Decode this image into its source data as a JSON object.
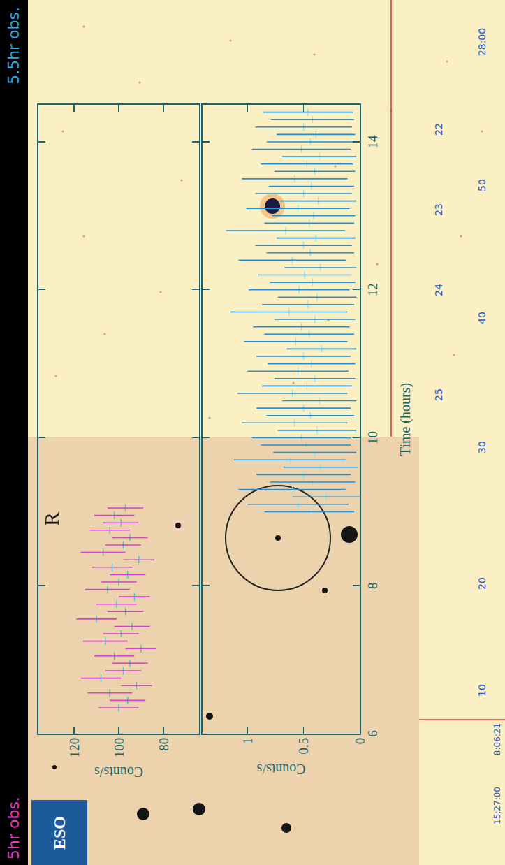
{
  "chart_data": [
    {
      "type": "scatter",
      "annotation": "R",
      "ylabel": "Counts/s",
      "xlim": [
        6,
        14.5
      ],
      "xticks": [
        6,
        8,
        10,
        12,
        14
      ],
      "ylim": [
        64,
        136
      ],
      "yticks": [
        80,
        100,
        120
      ],
      "tick_labels": "y",
      "series": [
        {
          "color": "#d23fd2",
          "x": [
            6.35,
            6.45,
            6.55,
            6.65,
            6.75,
            6.85,
            6.95,
            7.05,
            7.15,
            7.25,
            7.35,
            7.45,
            7.55,
            7.65,
            7.75,
            7.85,
            7.95,
            8.05,
            8.15,
            8.25,
            8.35,
            8.45,
            8.55,
            8.65,
            8.75,
            8.85,
            8.95,
            9.05
          ],
          "values": [
            100,
            96,
            104,
            92,
            108,
            98,
            95,
            102,
            90,
            106,
            99,
            94,
            110,
            97,
            101,
            93,
            105,
            100,
            96,
            103,
            91,
            107,
            98,
            95,
            104,
            99,
            102,
            97
          ],
          "errors": [
            9,
            8,
            10,
            7,
            9,
            8,
            8,
            9,
            7,
            10,
            8,
            8,
            9,
            8,
            9,
            7,
            10,
            8,
            8,
            9,
            7,
            10,
            8,
            8,
            9,
            8,
            9,
            8
          ]
        }
      ]
    },
    {
      "type": "scatter",
      "xlabel": "Time (hours)",
      "ylabel": "Counts/s",
      "xlim": [
        6,
        14.5
      ],
      "xticks": [
        6,
        8,
        10,
        12,
        14
      ],
      "ylim": [
        0,
        1.4
      ],
      "yticks": [
        0,
        0.5,
        1
      ],
      "series": [
        {
          "color": "#1e8fd6",
          "x": [
            9.0,
            9.1,
            9.2,
            9.3,
            9.4,
            9.5,
            9.6,
            9.7,
            9.8,
            9.9,
            10.0,
            10.1,
            10.2,
            10.3,
            10.4,
            10.5,
            10.6,
            10.7,
            10.8,
            10.9,
            11.0,
            11.1,
            11.2,
            11.3,
            11.4,
            11.5,
            11.6,
            11.7,
            11.8,
            11.9,
            12.0,
            12.1,
            12.2,
            12.3,
            12.4,
            12.5,
            12.6,
            12.7,
            12.8,
            12.9,
            13.0,
            13.1,
            13.2,
            13.3,
            13.4,
            13.5,
            13.6,
            13.7,
            13.8,
            13.9,
            14.0,
            14.1,
            14.2,
            14.3,
            14.4
          ],
          "values": [
            0.45,
            0.55,
            0.3,
            0.6,
            0.42,
            0.5,
            0.35,
            0.62,
            0.4,
            0.48,
            0.52,
            0.38,
            0.58,
            0.44,
            0.5,
            0.36,
            0.6,
            0.47,
            0.4,
            0.55,
            0.43,
            0.5,
            0.34,
            0.57,
            0.45,
            0.52,
            0.4,
            0.63,
            0.46,
            0.38,
            0.54,
            0.42,
            0.49,
            0.35,
            0.6,
            0.44,
            0.5,
            0.39,
            0.66,
            0.45,
            0.41,
            0.55,
            0.37,
            0.5,
            0.43,
            0.58,
            0.4,
            0.47,
            0.36,
            0.52,
            0.44,
            0.39,
            0.5,
            0.42,
            0.46
          ],
          "errors": [
            0.4,
            0.45,
            0.3,
            0.48,
            0.38,
            0.42,
            0.33,
            0.5,
            0.37,
            0.4,
            0.44,
            0.35,
            0.47,
            0.39,
            0.42,
            0.33,
            0.49,
            0.4,
            0.36,
            0.45,
            0.39,
            0.42,
            0.31,
            0.46,
            0.4,
            0.43,
            0.36,
            0.52,
            0.41,
            0.35,
            0.45,
            0.38,
            0.42,
            0.32,
            0.48,
            0.39,
            0.43,
            0.35,
            0.53,
            0.4,
            0.37,
            0.46,
            0.34,
            0.43,
            0.38,
            0.47,
            0.36,
            0.41,
            0.33,
            0.44,
            0.39,
            0.35,
            0.43,
            0.37,
            0.4
          ]
        }
      ]
    }
  ],
  "overlay": {
    "observations": [
      {
        "text": "5hr obs.",
        "color": "#e040c8"
      },
      {
        "text": "5.5hr obs.",
        "color": "#2fa8e0"
      }
    ],
    "dec_labels": [
      "28:00",
      "50",
      "40",
      "30",
      "20",
      "10"
    ],
    "ra_labels": [
      "22",
      "23",
      "24",
      "25"
    ],
    "crosshair_labels": [
      "8:06:21",
      "15:27:00"
    ],
    "logo": "ESO"
  }
}
